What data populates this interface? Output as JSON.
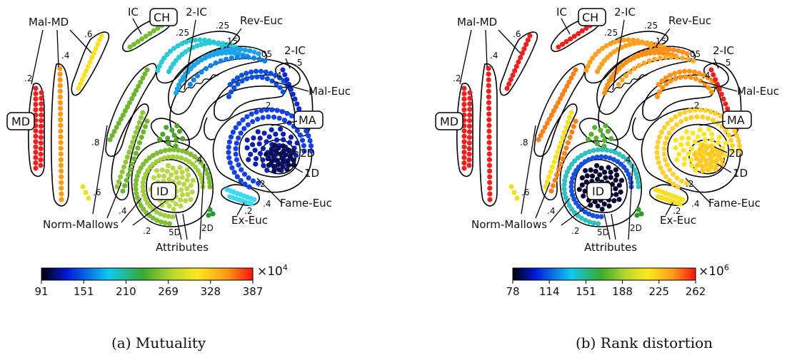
{
  "panels": [
    {
      "caption": "(a) Mutuality",
      "colorbar": {
        "ticks": [
          "91",
          "151",
          "210",
          "269",
          "328",
          "387"
        ],
        "multiplier_base": "×10",
        "multiplier_exp": "4"
      },
      "colors": {
        "mal_md_a": "#ff9a10",
        "mal_md_b": "#ffe020",
        "md": "#ee2020",
        "ic": "#78c030",
        "ic_arc": "#9fcf3a",
        "mallows_outer": "#6fb62f",
        "mallows_mid": "#8fc73a",
        "mallows_in": "#4fa52a",
        "rev_a": "#29c9d8",
        "rev_b": "#18a5ee",
        "rev_c": "#1180f0",
        "mal_euc": "#0c4fe0",
        "two_ic": "#0d2ad0",
        "ma_outer": "#1440e8",
        "ma_mid": "#0a20b0",
        "ma_in": "#0a0a50",
        "ex_euc": "#40d8f0",
        "id_ring1": "#7ebd34",
        "id_ring2": "#a0d040",
        "id_core": "#b8d84a",
        "dark_green": "#2a9a28",
        "yellow": "#f2e020"
      }
    },
    {
      "caption": "(b) Rank distortion",
      "colorbar": {
        "ticks": [
          "78",
          "114",
          "151",
          "188",
          "225",
          "262"
        ],
        "multiplier_base": "×10",
        "multiplier_exp": "6"
      },
      "colors": {
        "mal_md_a": "#ee2020",
        "mal_md_b": "#ee2020",
        "md": "#ee2020",
        "ic": "#ee2020",
        "ic_arc": "#ff7018",
        "mallows_outer": "#ff8018",
        "mallows_mid": "#f8e020",
        "mallows_in": "#58b030",
        "rev_a": "#ffa020",
        "rev_b": "#ff9018",
        "rev_c": "#ffaa28",
        "mal_euc": "#ff9418",
        "two_ic": "#ee2020",
        "ma_outer": "#ffd030",
        "ma_mid": "#ffe428",
        "ma_in": "#ffc828",
        "ex_euc": "#f8e020",
        "id_ring1": "#30c0c0",
        "id_ring2": "#1850e0",
        "id_core": "#050530",
        "dark_green": "#2a9a28",
        "yellow": "#f2e020"
      }
    }
  ],
  "labels": {
    "mal_md": "Mal-MD",
    "md": "MD",
    "ic": "IC",
    "ch": "CH",
    "two_ic_top": "2-IC",
    "rev_euc": "Rev-Euc",
    "two_ic_right": "2-IC",
    "mal_euc": "Mal-Euc",
    "ma": "MA",
    "two_d": "2D",
    "one_d": "1D",
    "fame_euc": "Fame-Euc",
    "ex_euc": "Ex-Euc",
    "id": "ID",
    "norm_mallows": "Norm-Mallows",
    "attributes": "Attributes",
    "five_d": "5D",
    "two_d_bottom": "2D"
  },
  "params": {
    "p_mal_md_a": ".2",
    "p_mal_md_b": ".4",
    "p_mal_md_c": ".6",
    "p_ic_a": ".25",
    "p_ic_b": ".25",
    "p_rev_a": ".15",
    "p_rev_b": ".05",
    "p_2ic_a": ".5",
    "p_2ic_b": ".4",
    "p_ma": ".2",
    "p_mallows_a": ".8",
    "p_mallows_b": ".6",
    "p_mallows_c": ".4",
    "p_mallows_d": ".2",
    "p_id": ".4",
    "p_fame_a": ".2",
    "p_fame_b": ".4",
    "p_ex": ".2"
  }
}
